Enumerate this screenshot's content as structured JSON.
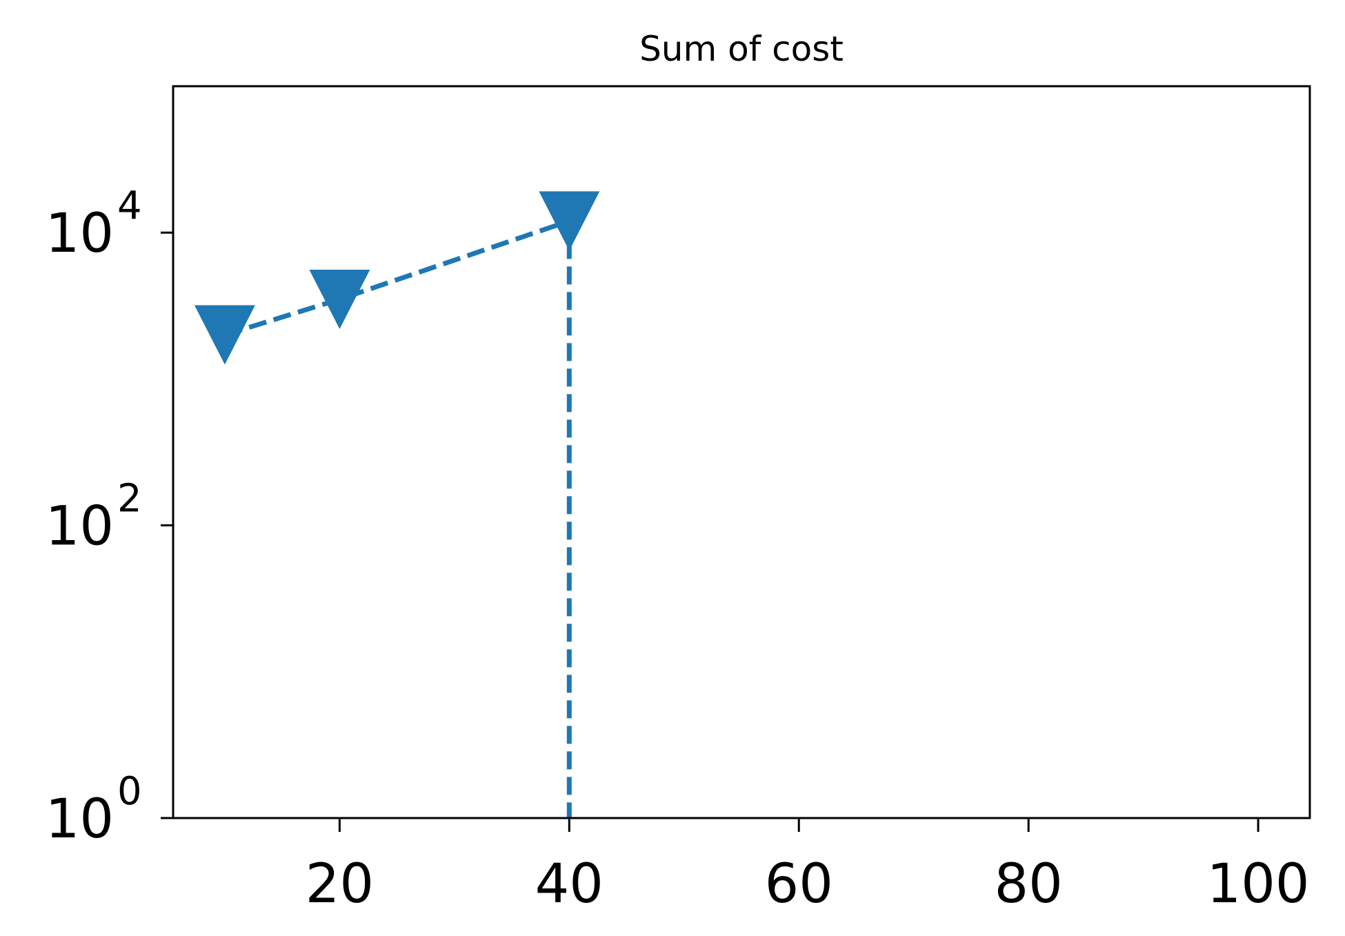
{
  "chart_data": {
    "type": "line",
    "title": "Sum of cost",
    "xlabel": "",
    "ylabel": "",
    "xlim": [
      5.5,
      104.5
    ],
    "ylim": [
      1,
      100000
    ],
    "yscale": "log",
    "grid": false,
    "legend": "none",
    "x_ticks": [
      {
        "value": 20,
        "label": "20"
      },
      {
        "value": 40,
        "label": "40"
      },
      {
        "value": 60,
        "label": "60"
      },
      {
        "value": 80,
        "label": "80"
      },
      {
        "value": 100,
        "label": "100"
      }
    ],
    "y_ticks": [
      {
        "value": 1,
        "base": "10",
        "exp": "0"
      },
      {
        "value": 100,
        "base": "10",
        "exp": "2"
      },
      {
        "value": 10000,
        "base": "10",
        "exp": "4"
      }
    ],
    "series": [
      {
        "color": "#1f77b4",
        "line_style": "dashed",
        "marker": "triangle-down",
        "x": [
          10,
          20,
          40,
          40
        ],
        "y": [
          2000,
          3500,
          12000,
          1
        ],
        "marker_mask": [
          true,
          true,
          true,
          false
        ]
      }
    ]
  }
}
